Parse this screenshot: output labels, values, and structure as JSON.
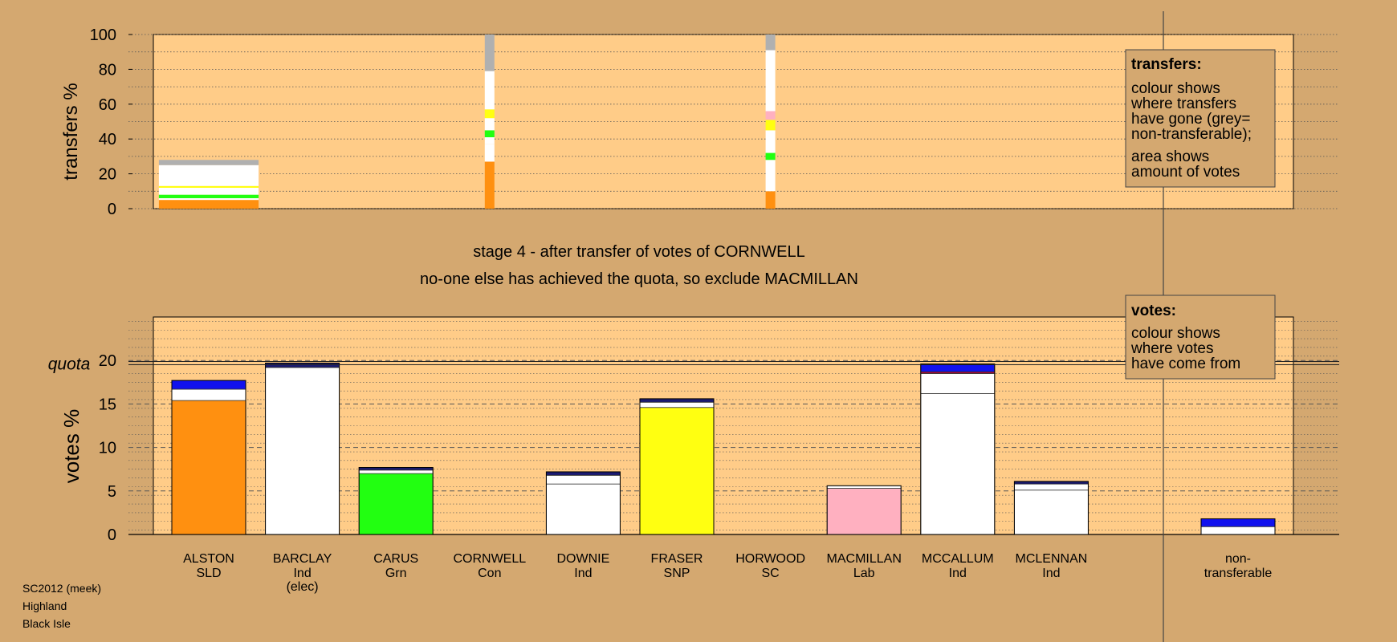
{
  "colors": {
    "background": "#d4a870",
    "plot_bg": "#ffcc88",
    "legend_bg": "#d4a870",
    "ALSTON": "#ff9010",
    "BARCLAY": "#ffffff",
    "CARUS": "#22ff11",
    "FRASER": "#ffff11",
    "MACMILLAN": "#ffb0c0",
    "blue": "#1111ee",
    "navy": "#1a1a70",
    "crimson": "#b0003a",
    "grey": "#b0b0b0",
    "white": "#ffffff"
  },
  "stage_title": "stage 4 - after transfer of votes of CORNWELL",
  "stage_subtitle": "no-one else has achieved the quota, so exclude MACMILLAN",
  "transfers_legend": {
    "heading": "transfers:",
    "lines1": [
      "colour shows",
      "where transfers",
      "have gone (grey=",
      "non-transferable);"
    ],
    "lines2": [
      "area shows",
      "amount of votes"
    ]
  },
  "votes_legend": {
    "heading": "votes:",
    "lines": [
      "colour shows",
      "where votes",
      "have come from"
    ]
  },
  "footer": [
    "SC2012 (meek)",
    "Highland",
    "Black Isle"
  ],
  "chart_data": [
    {
      "type": "bar",
      "stacked": true,
      "ylabel": "transfers %",
      "ylim": [
        0,
        100
      ],
      "yticks": [
        0,
        20,
        40,
        60,
        80,
        100
      ],
      "bars": [
        {
          "name": "ALSTON",
          "width_share": 1.0,
          "segments": [
            {
              "color": "ALSTON",
              "value": 5
            },
            {
              "color": "white",
              "value": 1
            },
            {
              "color": "CARUS",
              "value": 2
            },
            {
              "color": "white",
              "value": 4
            },
            {
              "color": "FRASER",
              "value": 1
            },
            {
              "color": "white",
              "value": 12
            },
            {
              "color": "grey",
              "value": 3
            }
          ]
        },
        {
          "name": "CORNWELL",
          "width_share": 0.12,
          "segments": [
            {
              "color": "ALSTON",
              "value": 27
            },
            {
              "color": "white",
              "value": 10
            },
            {
              "color": "white",
              "value": 4
            },
            {
              "color": "CARUS",
              "value": 4
            },
            {
              "color": "white",
              "value": 7
            },
            {
              "color": "FRASER",
              "value": 5
            },
            {
              "color": "white",
              "value": 22
            },
            {
              "color": "grey",
              "value": 21
            }
          ]
        },
        {
          "name": "HORWOOD",
          "width_share": 0.05,
          "segments": [
            {
              "color": "ALSTON",
              "value": 10
            },
            {
              "color": "white",
              "value": 18
            },
            {
              "color": "CARUS",
              "value": 4
            },
            {
              "color": "white",
              "value": 13
            },
            {
              "color": "FRASER",
              "value": 6
            },
            {
              "color": "MACMILLAN",
              "value": 5
            },
            {
              "color": "white",
              "value": 35
            },
            {
              "color": "grey",
              "value": 9
            }
          ]
        }
      ]
    },
    {
      "type": "bar",
      "stacked": true,
      "ylabel": "votes %",
      "ylim": [
        0,
        25
      ],
      "yticks": [
        0,
        5,
        10,
        15,
        20
      ],
      "quota": 19.7,
      "quota_label": "quota",
      "categories": [
        {
          "name": "ALSTON",
          "party": "SLD"
        },
        {
          "name": "BARCLAY",
          "party": "Ind",
          "note": "(elec)"
        },
        {
          "name": "CARUS",
          "party": "Grn"
        },
        {
          "name": "CORNWELL",
          "party": "Con"
        },
        {
          "name": "DOWNIE",
          "party": "Ind"
        },
        {
          "name": "FRASER",
          "party": "SNP"
        },
        {
          "name": "HORWOOD",
          "party": "SC"
        },
        {
          "name": "MACMILLAN",
          "party": "Lab"
        },
        {
          "name": "MCCALLUM",
          "party": "Ind"
        },
        {
          "name": "MCLENNAN",
          "party": "Ind"
        },
        {
          "name": "non-",
          "party": "transferable"
        }
      ],
      "series": [
        {
          "category": "ALSTON",
          "segments": [
            {
              "color": "ALSTON",
              "value": 15.4
            },
            {
              "color": "white",
              "value": 1.3
            },
            {
              "color": "blue",
              "value": 1.0
            }
          ]
        },
        {
          "category": "BARCLAY",
          "segments": [
            {
              "color": "BARCLAY",
              "value": 19.2
            },
            {
              "color": "navy",
              "value": 0.5
            }
          ]
        },
        {
          "category": "CARUS",
          "segments": [
            {
              "color": "CARUS",
              "value": 7.0
            },
            {
              "color": "white",
              "value": 0.4
            },
            {
              "color": "navy",
              "value": 0.3
            }
          ]
        },
        {
          "category": "CORNWELL",
          "segments": []
        },
        {
          "category": "DOWNIE",
          "segments": [
            {
              "color": "white",
              "value": 5.8
            },
            {
              "color": "white",
              "value": 1.0
            },
            {
              "color": "navy",
              "value": 0.4
            }
          ]
        },
        {
          "category": "FRASER",
          "segments": [
            {
              "color": "FRASER",
              "value": 14.6
            },
            {
              "color": "white",
              "value": 0.6
            },
            {
              "color": "navy",
              "value": 0.4
            }
          ]
        },
        {
          "category": "HORWOOD",
          "segments": []
        },
        {
          "category": "MACMILLAN",
          "segments": [
            {
              "color": "MACMILLAN",
              "value": 5.3
            },
            {
              "color": "white",
              "value": 0.3
            }
          ]
        },
        {
          "category": "MCCALLUM",
          "segments": [
            {
              "color": "white",
              "value": 16.2
            },
            {
              "color": "white",
              "value": 2.3
            },
            {
              "color": "crimson",
              "value": 0.2
            },
            {
              "color": "blue",
              "value": 0.9
            }
          ]
        },
        {
          "category": "MCLENNAN",
          "segments": [
            {
              "color": "white",
              "value": 5.1
            },
            {
              "color": "white",
              "value": 0.7
            },
            {
              "color": "navy",
              "value": 0.3
            }
          ]
        },
        {
          "category": "non-",
          "segments": [
            {
              "color": "white",
              "value": 0.9
            },
            {
              "color": "blue",
              "value": 0.9
            }
          ]
        }
      ]
    }
  ]
}
